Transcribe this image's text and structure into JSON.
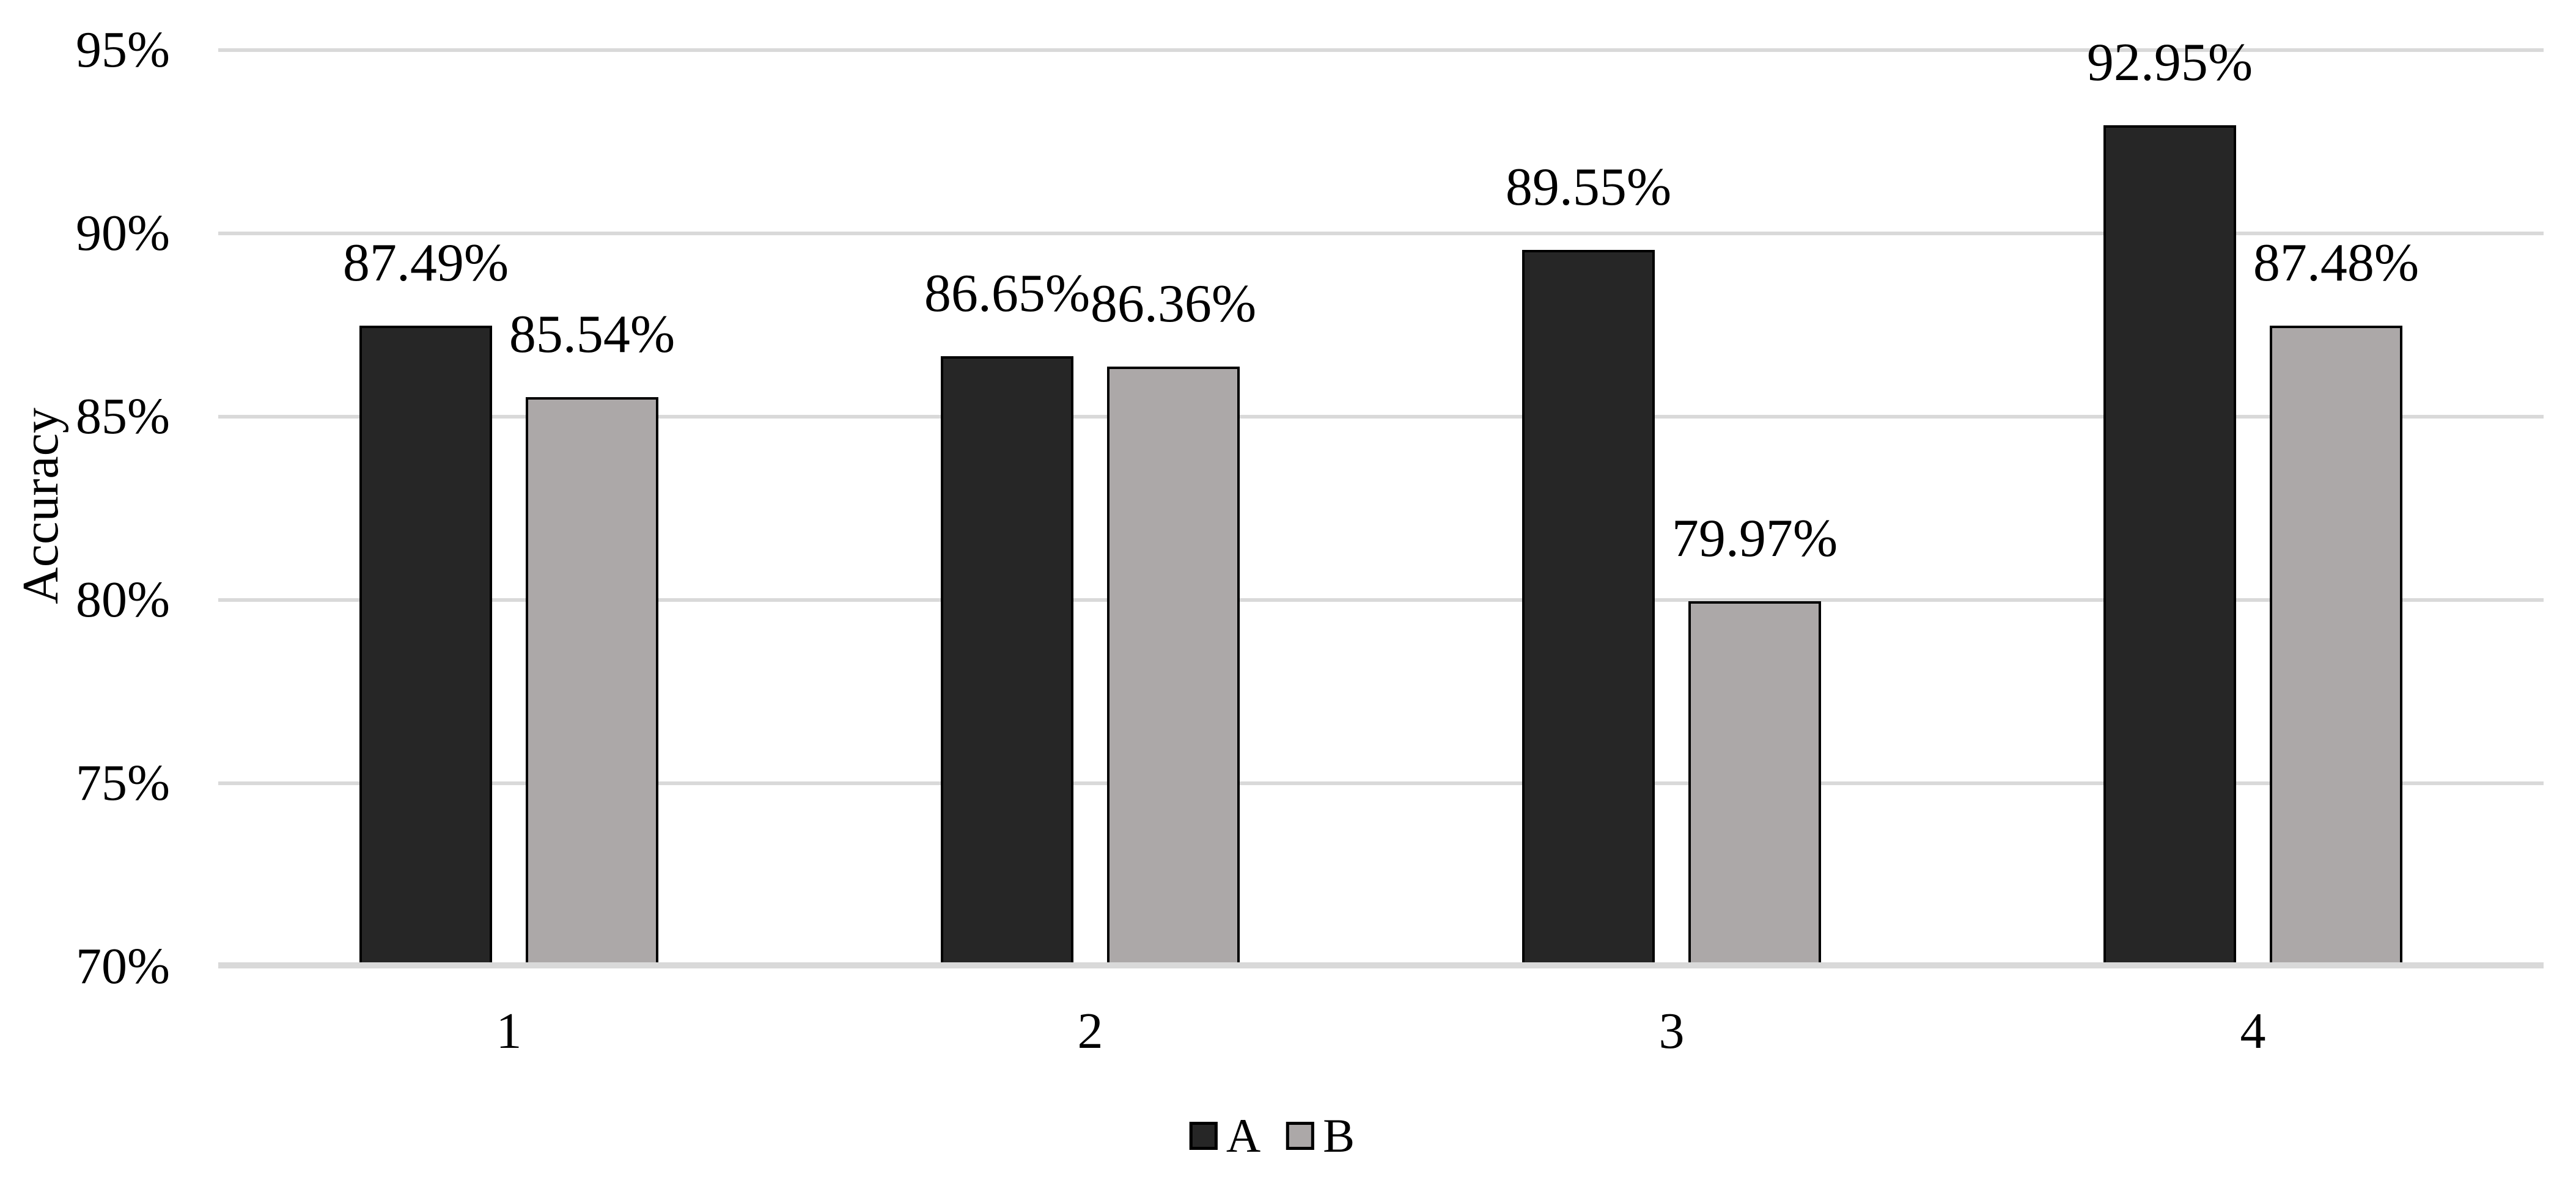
{
  "chart_data": {
    "type": "bar",
    "title": "",
    "ylabel": "Accuracy",
    "xlabel": "",
    "categories": [
      "1",
      "2",
      "3",
      "4"
    ],
    "series": [
      {
        "name": "A",
        "color": "#262626",
        "values": [
          87.49,
          86.65,
          89.55,
          92.95
        ],
        "labels": [
          "87.49%",
          "86.65%",
          "89.55%",
          "92.95%"
        ]
      },
      {
        "name": "B",
        "color": "#aca8a8",
        "values": [
          85.54,
          86.36,
          79.97,
          87.48
        ],
        "labels": [
          "85.54%",
          "86.36%",
          "79.97%",
          "87.48%"
        ]
      }
    ],
    "ylim": [
      70,
      95
    ],
    "y_ticks": [
      {
        "value": 95,
        "label": "95%"
      },
      {
        "value": 90,
        "label": "90%"
      },
      {
        "value": 85,
        "label": "85%"
      },
      {
        "value": 80,
        "label": "80%"
      },
      {
        "value": 75,
        "label": "75%"
      },
      {
        "value": 70,
        "label": "70%"
      }
    ],
    "grid": true,
    "legend_position": "bottom-center",
    "colors": {
      "background": "#ffffff",
      "gridline": "#d9d9d9",
      "axis_line": "#d9d9d9",
      "bar_border": "#000000",
      "text": "#000000"
    }
  }
}
